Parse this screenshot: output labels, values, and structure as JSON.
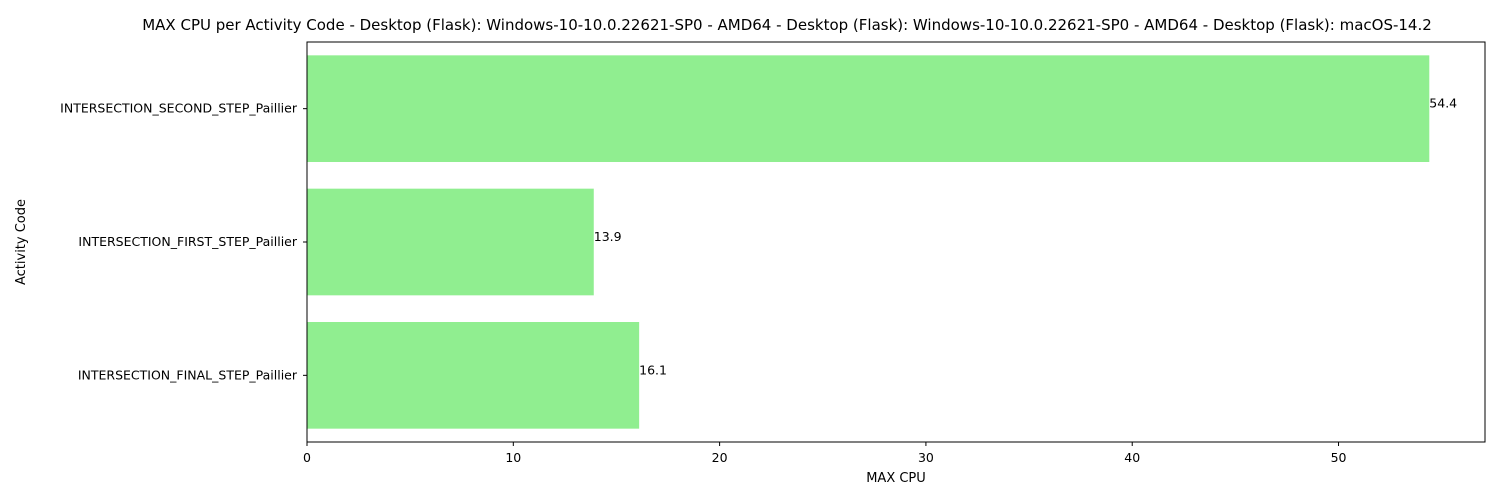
{
  "chart_data": {
    "type": "bar",
    "orientation": "horizontal",
    "title": "MAX CPU per Activity Code - Desktop (Flask): Windows-10-10.0.22621-SP0 - AMD64 - Desktop (Flask): Windows-10-10.0.22621-SP0 - AMD64 - Desktop (Flask): macOS-14.2",
    "xlabel": "MAX CPU",
    "ylabel": "Activity Code",
    "categories": [
      "INTERSECTION_SECOND_STEP_Paillier",
      "INTERSECTION_FIRST_STEP_Paillier",
      "INTERSECTION_FINAL_STEP_Paillier"
    ],
    "values": [
      54.4,
      13.9,
      16.1
    ],
    "data_labels": [
      "54.4",
      "13.9",
      "16.1"
    ],
    "xlim": [
      0,
      57.1
    ],
    "xticks": [
      0,
      10,
      20,
      30,
      40,
      50
    ],
    "bar_color": "#90ee90",
    "grid": false
  }
}
